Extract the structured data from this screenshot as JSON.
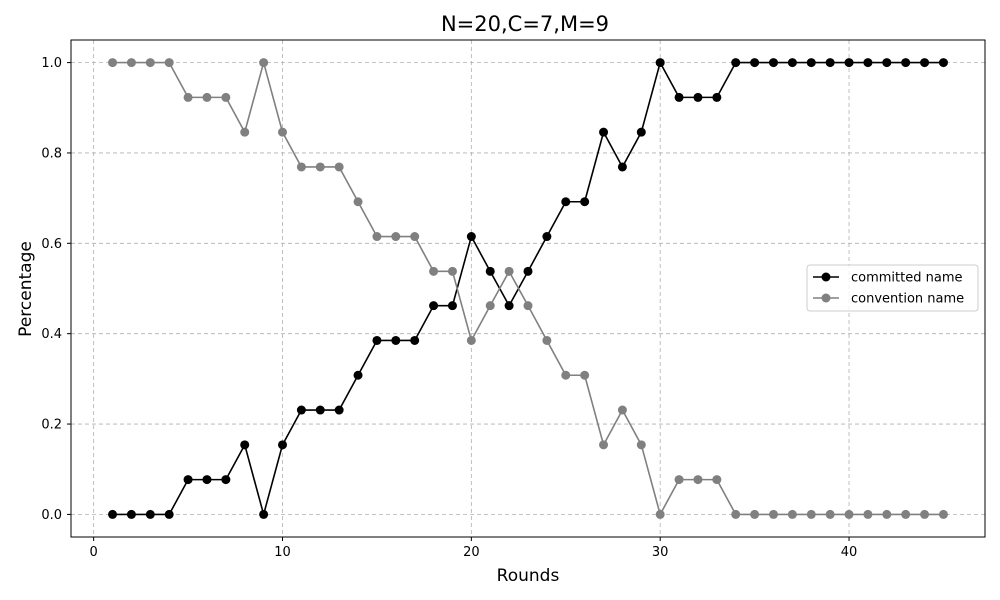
{
  "chart_data": {
    "type": "line",
    "title": "N=20,C=7,M=9",
    "xlabel": "Rounds",
    "ylabel": "Percentage",
    "xlim": [
      -1.2,
      47.2
    ],
    "ylim": [
      -0.05,
      1.05
    ],
    "xticks": [
      0,
      10,
      20,
      30,
      40
    ],
    "yticks": [
      0.0,
      0.2,
      0.4,
      0.6,
      0.8,
      1.0
    ],
    "xtick_labels": [
      "0",
      "10",
      "20",
      "30",
      "40"
    ],
    "ytick_labels": [
      "0.0",
      "0.2",
      "0.4",
      "0.6",
      "0.8",
      "1.0"
    ],
    "grid": true,
    "legend_position": "center-right",
    "x": [
      1,
      2,
      3,
      4,
      5,
      6,
      7,
      8,
      9,
      10,
      11,
      12,
      13,
      14,
      15,
      16,
      17,
      18,
      19,
      20,
      21,
      22,
      23,
      24,
      25,
      26,
      27,
      28,
      29,
      30,
      31,
      32,
      33,
      34,
      35,
      36,
      37,
      38,
      39,
      40,
      41,
      42,
      43,
      44,
      45
    ],
    "series": [
      {
        "name": "committed name",
        "color": "#000000",
        "values": [
          0,
          0,
          0,
          0,
          0.077,
          0.077,
          0.077,
          0.154,
          0,
          0.154,
          0.231,
          0.231,
          0.231,
          0.308,
          0.385,
          0.385,
          0.385,
          0.462,
          0.462,
          0.615,
          0.538,
          0.462,
          0.538,
          0.615,
          0.692,
          0.692,
          0.846,
          0.769,
          0.846,
          1.0,
          0.923,
          0.923,
          0.923,
          1.0,
          1.0,
          1.0,
          1.0,
          1.0,
          1.0,
          1.0,
          1.0,
          1.0,
          1.0,
          1.0,
          1.0
        ]
      },
      {
        "name": "convention name",
        "color": "#808080",
        "values": [
          1.0,
          1.0,
          1.0,
          1.0,
          0.923,
          0.923,
          0.923,
          0.846,
          1.0,
          0.846,
          0.769,
          0.769,
          0.769,
          0.692,
          0.615,
          0.615,
          0.615,
          0.538,
          0.538,
          0.385,
          0.462,
          0.538,
          0.462,
          0.385,
          0.308,
          0.308,
          0.154,
          0.231,
          0.154,
          0,
          0.077,
          0.077,
          0.077,
          0,
          0,
          0,
          0,
          0,
          0,
          0,
          0,
          0,
          0,
          0,
          0
        ]
      }
    ]
  }
}
